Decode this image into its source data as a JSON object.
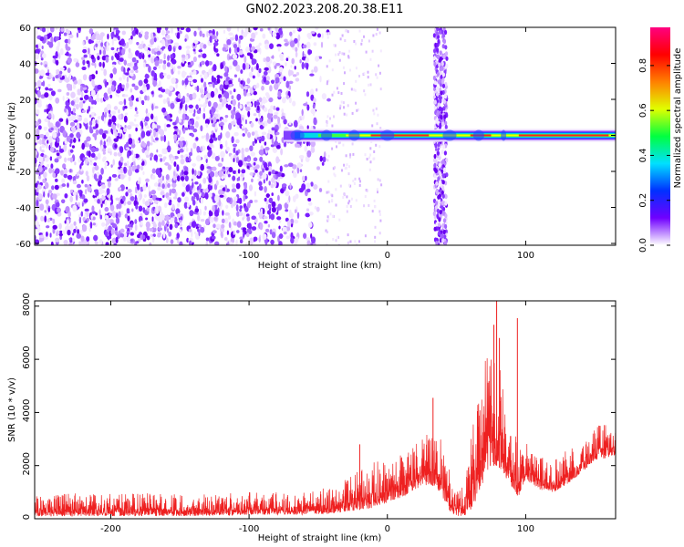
{
  "title": "GN02.2023.208.20.38.E11",
  "chart_data": [
    {
      "type": "heatmap",
      "title": "GN02.2023.208.20.38.E11",
      "xlabel": "Height of straight line (km)",
      "ylabel": "Frequency (Hz)",
      "xlim": [
        -255,
        165
      ],
      "ylim": [
        -61,
        60
      ],
      "x_ticks": [
        -200,
        -100,
        0,
        100
      ],
      "x_tick_labels": [
        "-200",
        "-100",
        "0",
        "100"
      ],
      "y_ticks": [
        -60,
        -40,
        -20,
        0,
        20,
        40,
        60
      ],
      "y_tick_labels": [
        "-60",
        "-40",
        "-20",
        "0",
        "20",
        "40",
        "60"
      ],
      "colorbar": {
        "label": "Normalized spectral amplitude",
        "range": [
          0,
          0.97
        ],
        "ticks": [
          0.0,
          0.2,
          0.4,
          0.6,
          0.8
        ],
        "tick_labels": [
          "0.0",
          "0.2",
          "0.4",
          "0.6",
          "0.8"
        ],
        "colormap": [
          "#ffffff",
          "#7000ff",
          "#0030ff",
          "#00e0ff",
          "#00ff40",
          "#e0ff00",
          "#ff8000",
          "#ff0000",
          "#ff0080"
        ]
      },
      "features": {
        "noise_region_x": [
          -255,
          -50
        ],
        "carrier_frequency": 0,
        "carrier_x": [
          -75,
          165
        ],
        "vertical_stripe_x": [
          34,
          43
        ]
      }
    },
    {
      "type": "line",
      "xlabel": "Height of straight line (km)",
      "ylabel": "SNR (10 * v/v)",
      "xlim": [
        -255,
        165
      ],
      "ylim": [
        0,
        8200
      ],
      "x_ticks": [
        -200,
        -100,
        0,
        100
      ],
      "x_tick_labels": [
        "-200",
        "-100",
        "0",
        "100"
      ],
      "y_ticks": [
        0,
        2000,
        4000,
        6000,
        8000
      ],
      "y_tick_labels": [
        "0",
        "2000",
        "4000",
        "6000",
        "8000"
      ],
      "color": "#ee2020",
      "envelope": {
        "x": [
          -255,
          -200,
          -150,
          -100,
          -60,
          -40,
          -25,
          -10,
          0,
          10,
          20,
          30,
          35,
          40,
          45,
          50,
          55,
          60,
          65,
          70,
          75,
          80,
          85,
          90,
          95,
          100,
          105,
          110,
          120,
          130,
          140,
          150,
          160,
          165
        ],
        "lower": [
          100,
          100,
          100,
          150,
          150,
          200,
          300,
          400,
          600,
          800,
          1100,
          1300,
          1200,
          800,
          300,
          100,
          100,
          300,
          800,
          1500,
          2000,
          2000,
          1600,
          1200,
          800,
          1500,
          1300,
          1100,
          1000,
          1300,
          1700,
          2200,
          2300,
          2400
        ],
        "upper": [
          900,
          1000,
          950,
          1000,
          1050,
          1200,
          1700,
          2200,
          2100,
          2500,
          2900,
          3300,
          3500,
          2800,
          1800,
          1000,
          1500,
          3000,
          4500,
          6000,
          7500,
          6500,
          4200,
          3500,
          2800,
          2900,
          2600,
          2400,
          2200,
          2600,
          3000,
          3500,
          3600,
          3400
        ]
      },
      "spikes": [
        {
          "x": 33,
          "y": 4550
        },
        {
          "x": 77,
          "y": 7300
        },
        {
          "x": 79,
          "y": 8200
        },
        {
          "x": 81,
          "y": 6800
        },
        {
          "x": 94,
          "y": 7550
        },
        {
          "x": -20,
          "y": 2800
        }
      ]
    }
  ]
}
